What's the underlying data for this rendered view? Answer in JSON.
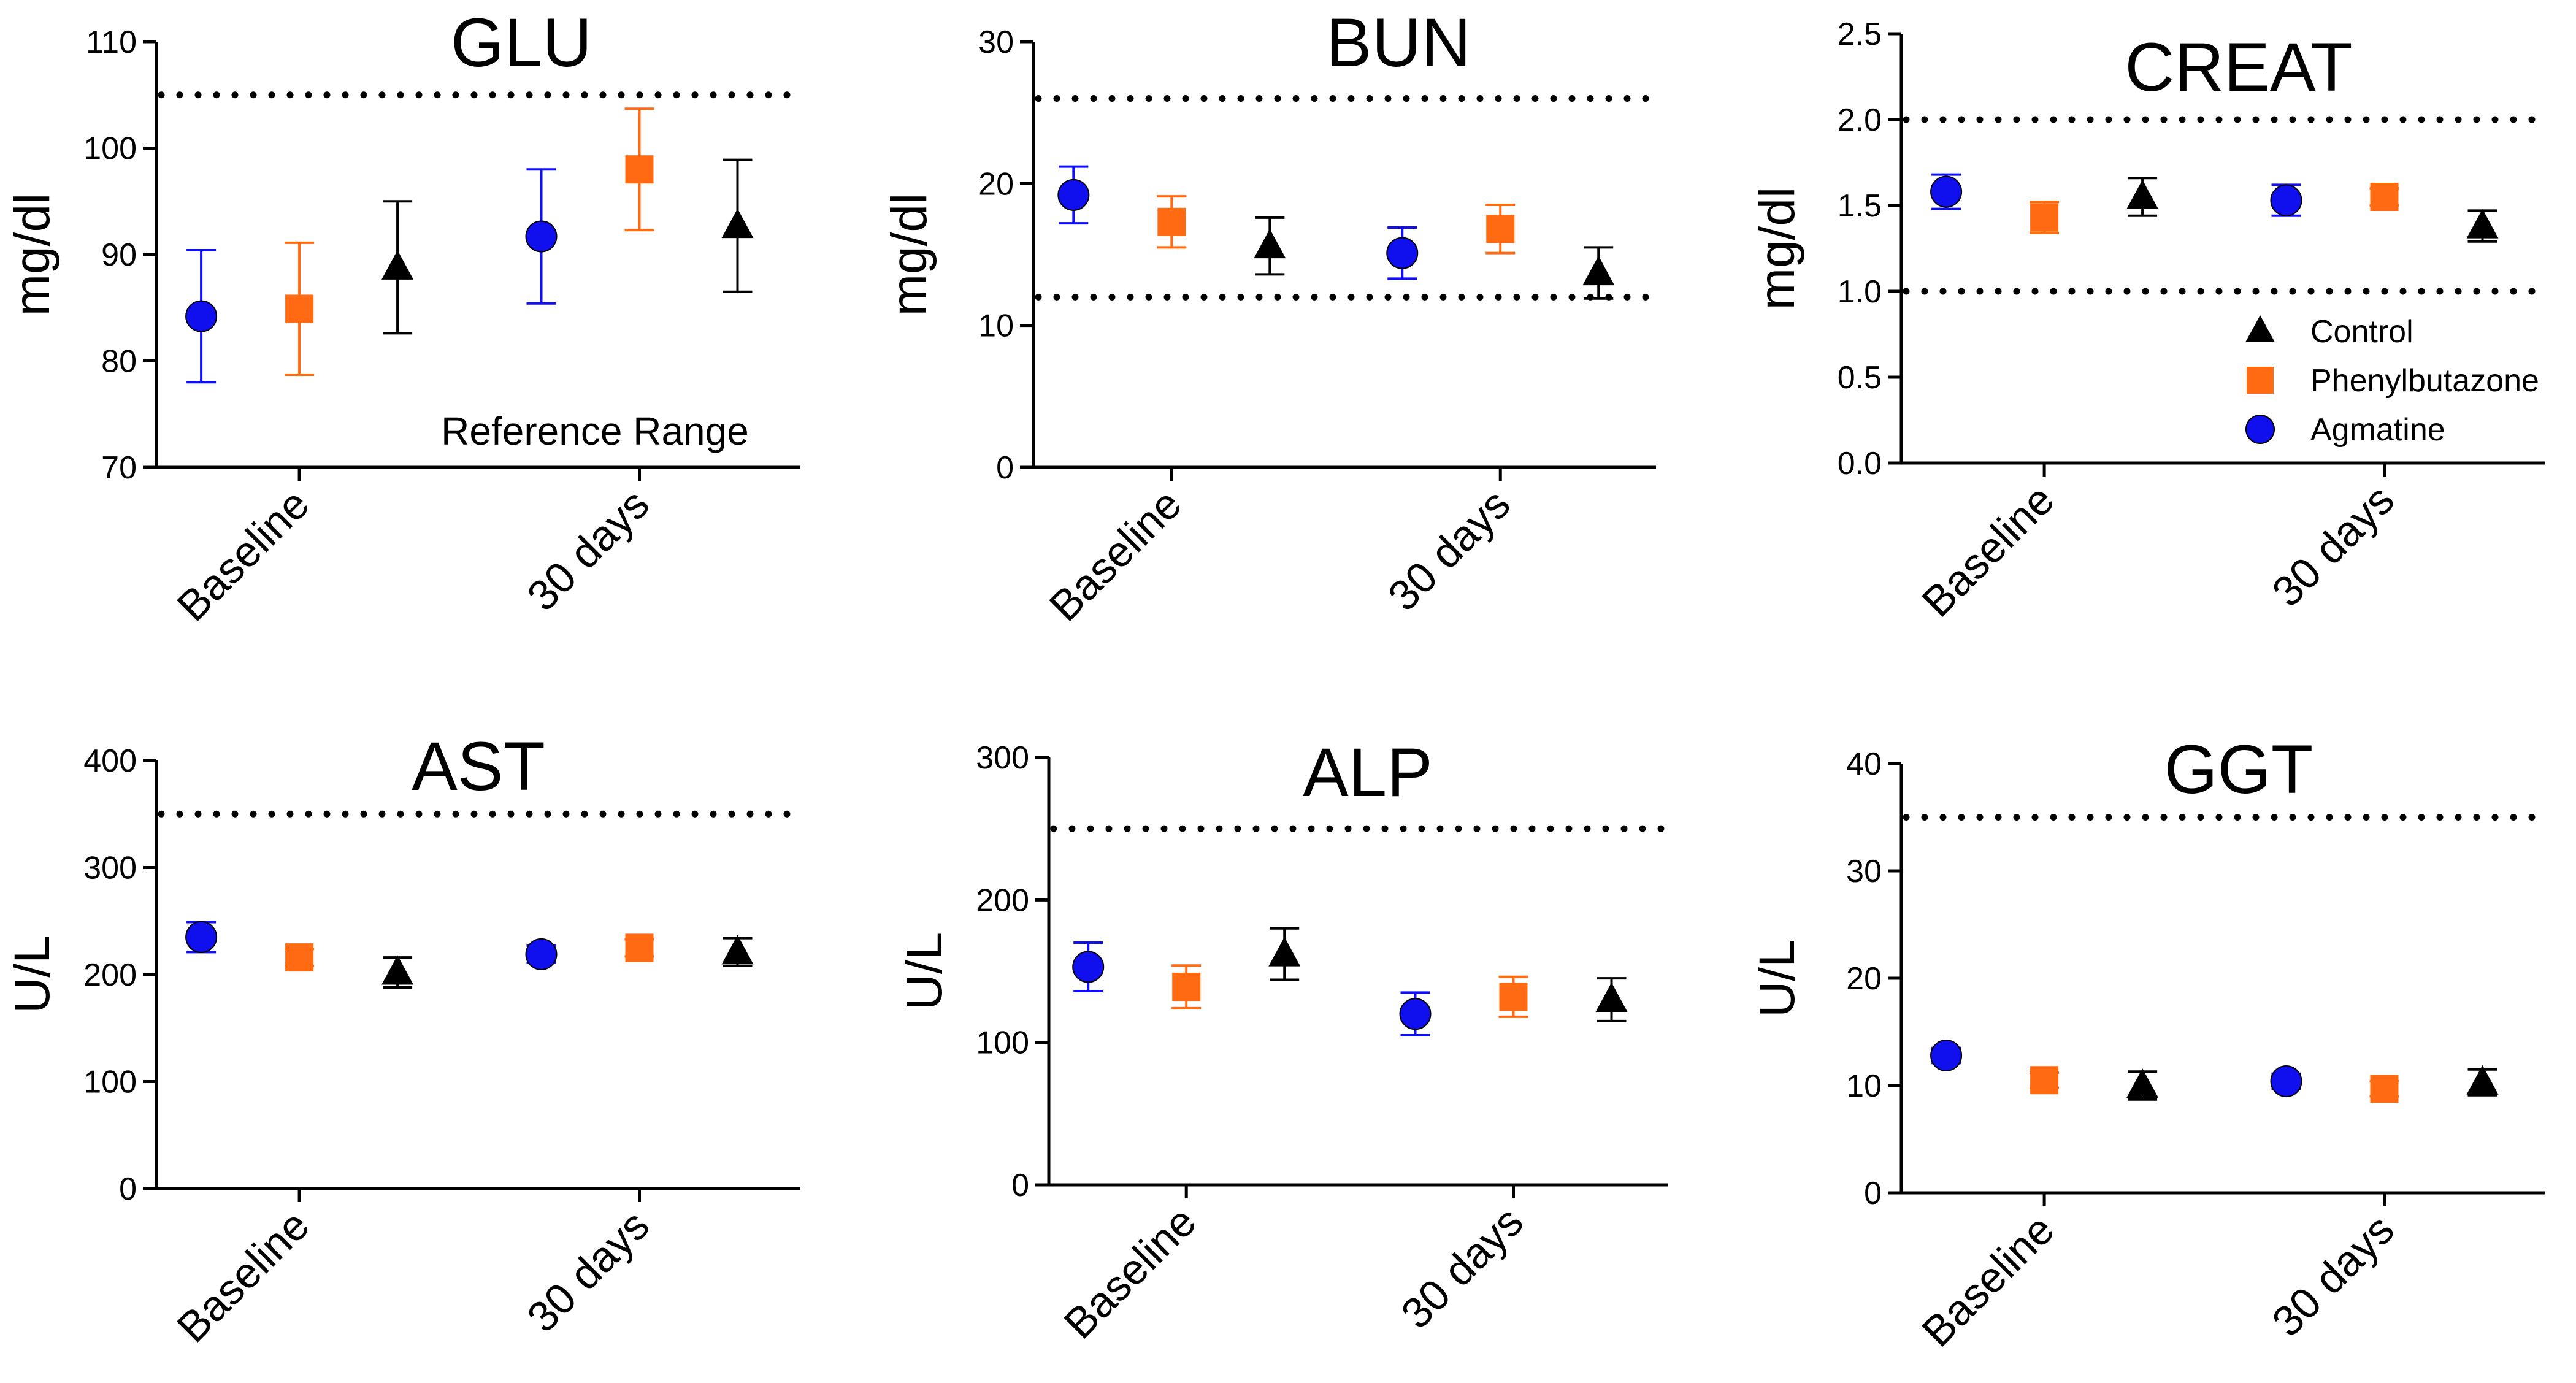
{
  "legend": {
    "placement": "right of CREAT panel",
    "entries": [
      {
        "name": "Control",
        "marker": "triangle",
        "color": "#000000"
      },
      {
        "name": "Phenylbutazone",
        "marker": "square",
        "color": "#ff6a13"
      },
      {
        "name": "Agmatine",
        "marker": "circle",
        "color": "#1010ee"
      }
    ]
  },
  "reference_label": "Reference Range",
  "colors": {
    "control": "#000000",
    "phenylbutazone": "#ff6a13",
    "agmatine": "#1010ee",
    "ref_line": "#000000"
  },
  "chart_data": [
    {
      "type": "scatter",
      "title": "GLU",
      "ylabel": "mg/dl",
      "xlabel": "",
      "categories": [
        "Baseline",
        "30 days"
      ],
      "ylim": [
        70,
        110
      ],
      "yticks": [
        70,
        80,
        90,
        100,
        110
      ],
      "reference_range": [
        105
      ],
      "series": [
        {
          "name": "Agmatine",
          "values": [
            84.2,
            91.7
          ],
          "errors": [
            6.2,
            6.3
          ]
        },
        {
          "name": "Phenylbutazone",
          "values": [
            84.9,
            98.0
          ],
          "errors": [
            6.2,
            5.7
          ]
        },
        {
          "name": "Control",
          "values": [
            88.8,
            92.7
          ],
          "errors": [
            6.2,
            6.2
          ]
        }
      ]
    },
    {
      "type": "scatter",
      "title": "BUN",
      "ylabel": "mg/dl",
      "xlabel": "",
      "categories": [
        "Baseline",
        "30 days"
      ],
      "ylim": [
        0,
        30
      ],
      "yticks": [
        0,
        10,
        20,
        30
      ],
      "reference_range": [
        12,
        26
      ],
      "series": [
        {
          "name": "Agmatine",
          "values": [
            19.2,
            15.1
          ],
          "errors": [
            2.0,
            1.8
          ]
        },
        {
          "name": "Phenylbutazone",
          "values": [
            17.3,
            16.8
          ],
          "errors": [
            1.8,
            1.7
          ]
        },
        {
          "name": "Control",
          "values": [
            15.6,
            13.7
          ],
          "errors": [
            2.0,
            1.8
          ]
        }
      ]
    },
    {
      "type": "scatter",
      "title": "CREAT",
      "ylabel": "mg/dl",
      "xlabel": "",
      "categories": [
        "Baseline",
        "30 days"
      ],
      "ylim": [
        0,
        2.5
      ],
      "yticks": [
        "0.0",
        "0.5",
        "1.0",
        "1.5",
        "2.0",
        "2.5"
      ],
      "reference_range": [
        1.0,
        2.0
      ],
      "series": [
        {
          "name": "Agmatine",
          "values": [
            1.58,
            1.53
          ],
          "errors": [
            0.1,
            0.09
          ]
        },
        {
          "name": "Phenylbutazone",
          "values": [
            1.43,
            1.55
          ],
          "errors": [
            0.09,
            0.05
          ]
        },
        {
          "name": "Control",
          "values": [
            1.55,
            1.38
          ],
          "errors": [
            0.11,
            0.09
          ]
        }
      ]
    },
    {
      "type": "scatter",
      "title": "AST",
      "ylabel": "U/L",
      "xlabel": "",
      "categories": [
        "Baseline",
        "30 days"
      ],
      "ylim": [
        0,
        400
      ],
      "yticks": [
        0,
        100,
        200,
        300,
        400
      ],
      "reference_range": [
        350
      ],
      "series": [
        {
          "name": "Agmatine",
          "values": [
            235,
            219
          ],
          "errors": [
            14,
            8
          ]
        },
        {
          "name": "Phenylbutazone",
          "values": [
            216,
            225
          ],
          "errors": [
            8,
            8
          ]
        },
        {
          "name": "Control",
          "values": [
            202,
            221
          ],
          "errors": [
            14,
            13
          ]
        }
      ]
    },
    {
      "type": "scatter",
      "title": "ALP",
      "ylabel": "U/L",
      "xlabel": "",
      "categories": [
        "Baseline",
        "30 days"
      ],
      "ylim": [
        0,
        300
      ],
      "yticks": [
        0,
        100,
        200,
        300
      ],
      "reference_range": [
        250
      ],
      "series": [
        {
          "name": "Agmatine",
          "values": [
            153,
            120
          ],
          "errors": [
            17,
            15
          ]
        },
        {
          "name": "Phenylbutazone",
          "values": [
            139,
            132
          ],
          "errors": [
            15,
            14
          ]
        },
        {
          "name": "Control",
          "values": [
            162,
            130
          ],
          "errors": [
            18,
            15
          ]
        }
      ]
    },
    {
      "type": "scatter",
      "title": "GGT",
      "ylabel": "U/L",
      "xlabel": "",
      "categories": [
        "Baseline",
        "30 days"
      ],
      "ylim": [
        0,
        40
      ],
      "yticks": [
        0,
        10,
        20,
        30,
        40
      ],
      "reference_range": [
        35
      ],
      "series": [
        {
          "name": "Agmatine",
          "values": [
            12.8,
            10.4
          ],
          "errors": [
            0.7,
            0.7
          ]
        },
        {
          "name": "Phenylbutazone",
          "values": [
            10.5,
            9.7
          ],
          "errors": [
            0.7,
            0.7
          ]
        },
        {
          "name": "Control",
          "values": [
            10.0,
            10.3
          ],
          "errors": [
            1.3,
            1.2
          ]
        }
      ]
    }
  ]
}
